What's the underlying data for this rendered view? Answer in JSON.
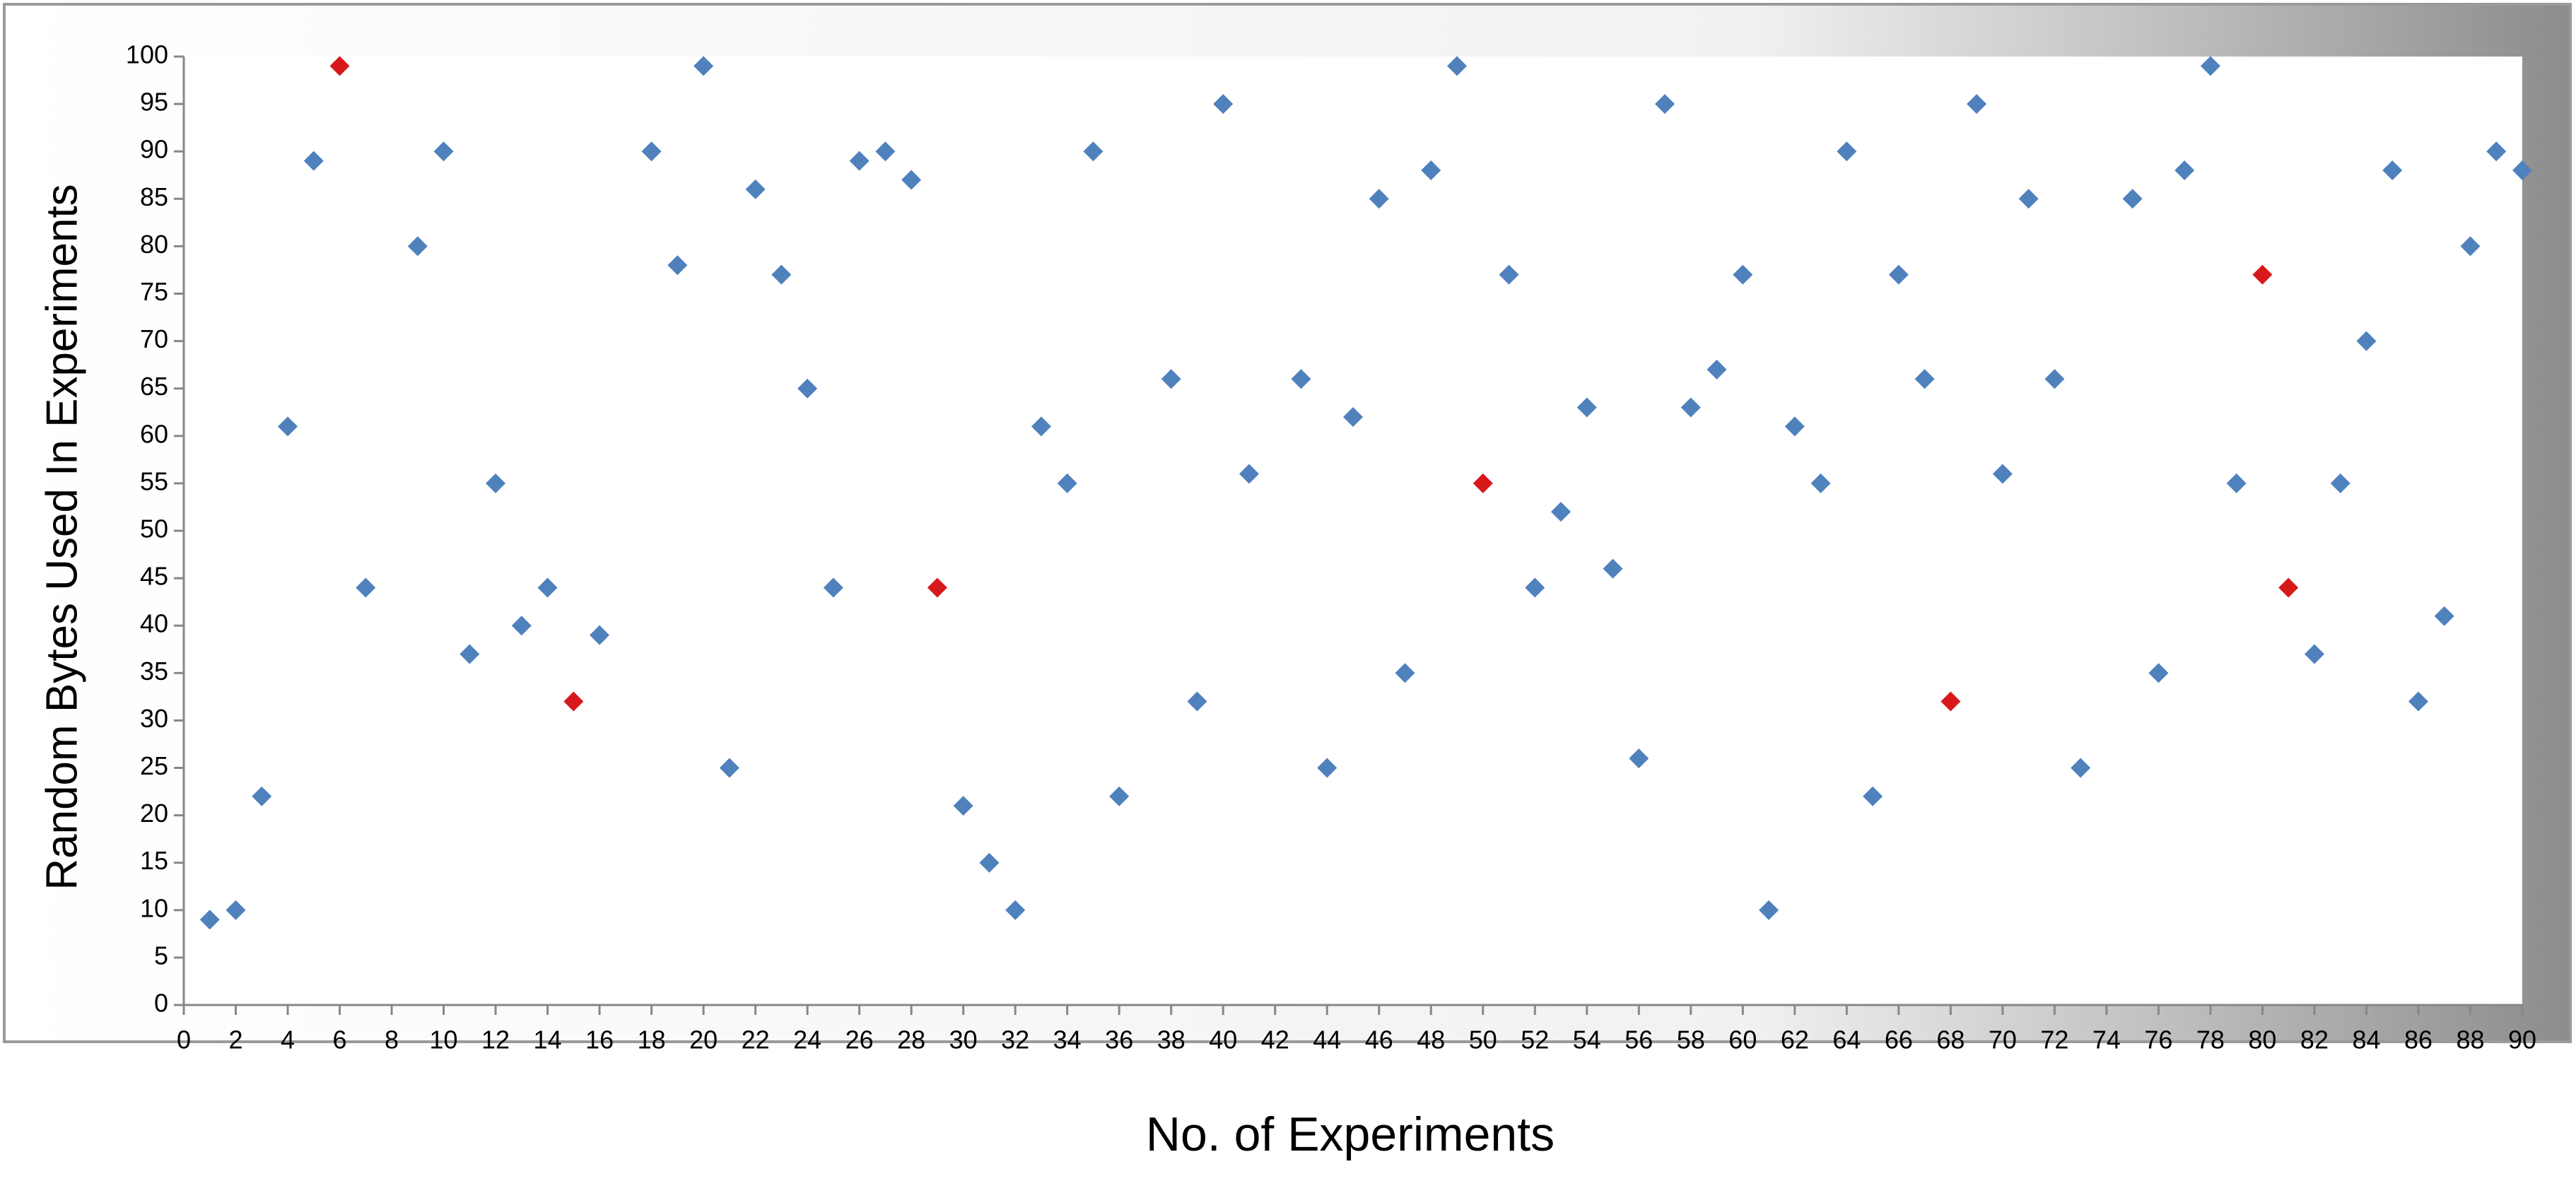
{
  "chart_data": {
    "type": "scatter",
    "title": "",
    "xlabel": "No. of Experiments",
    "ylabel": "Random Bytes Used In Experiments",
    "xlim": [
      0,
      90
    ],
    "ylim": [
      0,
      100
    ],
    "x_ticks": [
      0,
      2,
      4,
      6,
      8,
      10,
      12,
      14,
      16,
      18,
      20,
      22,
      24,
      26,
      28,
      30,
      32,
      34,
      36,
      38,
      40,
      42,
      44,
      46,
      48,
      50,
      52,
      54,
      56,
      58,
      60,
      62,
      64,
      66,
      68,
      70,
      72,
      74,
      76,
      78,
      80,
      82,
      84,
      86,
      88,
      90
    ],
    "y_ticks": [
      0,
      5,
      10,
      15,
      20,
      25,
      30,
      35,
      40,
      45,
      50,
      55,
      60,
      65,
      70,
      75,
      80,
      85,
      90,
      95,
      100
    ],
    "grid": false,
    "legend": "none",
    "colors": {
      "blue": "#4F81BD",
      "red": "#D7191C"
    },
    "series": [
      {
        "color": "#4F81BD",
        "marker": "diamond",
        "points": [
          [
            1,
            9
          ],
          [
            2,
            10
          ],
          [
            3,
            22
          ],
          [
            4,
            61
          ],
          [
            5,
            89
          ],
          [
            7,
            44
          ],
          [
            9,
            80
          ],
          [
            10,
            90
          ],
          [
            11,
            37
          ],
          [
            12,
            55
          ],
          [
            13,
            40
          ],
          [
            14,
            44
          ],
          [
            16,
            39
          ],
          [
            18,
            90
          ],
          [
            19,
            78
          ],
          [
            20,
            99
          ],
          [
            21,
            25
          ],
          [
            22,
            86
          ],
          [
            23,
            77
          ],
          [
            24,
            65
          ],
          [
            25,
            44
          ],
          [
            26,
            89
          ],
          [
            27,
            90
          ],
          [
            28,
            87
          ],
          [
            30,
            21
          ],
          [
            31,
            15
          ],
          [
            32,
            10
          ],
          [
            33,
            61
          ],
          [
            34,
            55
          ],
          [
            35,
            90
          ],
          [
            36,
            22
          ],
          [
            38,
            66
          ],
          [
            39,
            32
          ],
          [
            40,
            95
          ],
          [
            41,
            56
          ],
          [
            43,
            66
          ],
          [
            44,
            25
          ],
          [
            45,
            62
          ],
          [
            46,
            85
          ],
          [
            47,
            35
          ],
          [
            48,
            88
          ],
          [
            49,
            99
          ],
          [
            51,
            77
          ],
          [
            52,
            44
          ],
          [
            53,
            52
          ],
          [
            54,
            63
          ],
          [
            55,
            46
          ],
          [
            56,
            26
          ],
          [
            57,
            95
          ],
          [
            58,
            63
          ],
          [
            59,
            67
          ],
          [
            60,
            77
          ],
          [
            61,
            10
          ],
          [
            62,
            61
          ],
          [
            63,
            55
          ],
          [
            64,
            90
          ],
          [
            65,
            22
          ],
          [
            66,
            77
          ],
          [
            67,
            66
          ],
          [
            69,
            95
          ],
          [
            70,
            56
          ],
          [
            71,
            85
          ],
          [
            72,
            66
          ],
          [
            73,
            25
          ],
          [
            75,
            85
          ],
          [
            76,
            35
          ],
          [
            77,
            88
          ],
          [
            78,
            99
          ],
          [
            79,
            55
          ],
          [
            82,
            37
          ],
          [
            83,
            55
          ],
          [
            84,
            70
          ],
          [
            85,
            88
          ],
          [
            86,
            32
          ],
          [
            87,
            41
          ],
          [
            88,
            80
          ],
          [
            89,
            90
          ],
          [
            90,
            88
          ]
        ]
      },
      {
        "color": "#D7191C",
        "marker": "diamond",
        "points": [
          [
            6,
            99
          ],
          [
            15,
            32
          ],
          [
            29,
            44
          ],
          [
            50,
            55
          ],
          [
            68,
            32
          ],
          [
            80,
            77
          ],
          [
            81,
            44
          ]
        ]
      }
    ]
  }
}
